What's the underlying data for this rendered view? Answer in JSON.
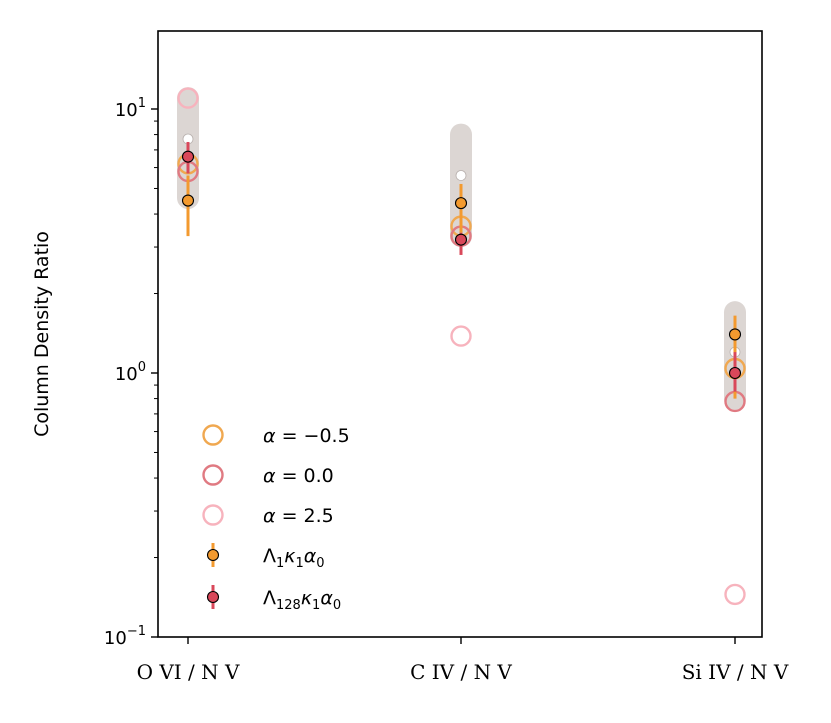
{
  "chart_data": {
    "type": "scatter",
    "yscale": "log",
    "ylim": [
      0.1,
      20
    ],
    "ylabel": "Column Density Ratio",
    "yticks": [
      {
        "value": 0.1,
        "base": "10",
        "exp": "−1"
      },
      {
        "value": 1,
        "base": "10",
        "exp": "0"
      },
      {
        "value": 10,
        "base": "10",
        "exp": "1"
      }
    ],
    "categories": [
      "O VI / N V",
      "C IV / N V",
      "Si IV / N V"
    ],
    "colors": {
      "alpha_m05": "#f0a850",
      "alpha_00": "#e07a82",
      "alpha_25": "#f7b3bd",
      "lambda1": "#f39a2f",
      "lambda128": "#d9485a",
      "band": "#dcd6d3",
      "white_point": "#ffffff"
    },
    "observed_band": [
      {
        "low": 4.6,
        "high": 11.0
      },
      {
        "low": 3.3,
        "high": 8.0
      },
      {
        "low": 0.8,
        "high": 1.7
      }
    ],
    "observed_white": [
      7.7,
      5.6,
      1.2
    ],
    "series": [
      {
        "name": "α = −0.5",
        "marker": "open-circle",
        "color_key": "alpha_m05",
        "values": [
          6.2,
          3.6,
          1.04
        ]
      },
      {
        "name": "α = 0.0",
        "marker": "open-circle",
        "color_key": "alpha_00",
        "values": [
          5.8,
          3.3,
          0.78
        ]
      },
      {
        "name": "α = 2.5",
        "marker": "open-circle",
        "color_key": "alpha_25",
        "values": [
          11.0,
          1.38,
          0.145
        ]
      },
      {
        "name": "Λ₁κ₁α₀",
        "marker": "filled-circle-errorbar",
        "color_key": "lambda1",
        "values": [
          4.5,
          4.4,
          1.4
        ],
        "err_low": [
          3.3,
          3.4,
          0.8
        ],
        "err_high": [
          5.6,
          5.2,
          1.65
        ]
      },
      {
        "name": "Λ₁₂₈κ₁α₀",
        "marker": "filled-circle-errorbar",
        "color_key": "lambda128",
        "values": [
          6.6,
          3.2,
          1.0
        ],
        "err_low": [
          5.7,
          2.8,
          0.85
        ],
        "err_high": [
          7.5,
          3.4,
          1.2
        ]
      }
    ],
    "legend": {
      "placement": "lower-left",
      "entries": [
        {
          "math": "α",
          "rest": " = −0.5",
          "sub1": "",
          "mid": "",
          "sub2": "",
          "tail": ""
        },
        {
          "math": "α",
          "rest": " = 0.0",
          "sub1": "",
          "mid": "",
          "sub2": "",
          "tail": ""
        },
        {
          "math": "α",
          "rest": " = 2.5",
          "sub1": "",
          "mid": "",
          "sub2": "",
          "tail": ""
        },
        {
          "math": "Λ",
          "rest": "",
          "sub1": "1",
          "mid": "κ",
          "sub2": "1",
          "tail": "α",
          "sub3": "0"
        },
        {
          "math": "Λ",
          "rest": "",
          "sub1": "128",
          "mid": "κ",
          "sub2": "1",
          "tail": "α",
          "sub3": "0"
        }
      ]
    }
  }
}
